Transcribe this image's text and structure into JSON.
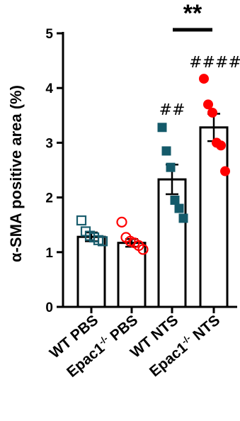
{
  "chart_data": {
    "type": "bar",
    "ylabel": "α-SMA positive area (%)",
    "ylim": [
      0,
      5
    ],
    "yticks": [
      0,
      1,
      2,
      3,
      4,
      5
    ],
    "categories": [
      {
        "name": "WT PBS",
        "base": "WT PBS",
        "sup": "",
        "tail": ""
      },
      {
        "name": "Epac1-/- PBS",
        "base": "Epac1",
        "sup": "-/-",
        "tail": " PBS"
      },
      {
        "name": "WT NTS",
        "base": "WT NTS",
        "sup": "",
        "tail": ""
      },
      {
        "name": "Epac1-/- NTS",
        "base": "Epac1",
        "sup": "-/-",
        "tail": " NTS"
      }
    ],
    "means": [
      1.28,
      1.17,
      2.33,
      3.28
    ],
    "sem": [
      0.08,
      0.07,
      0.27,
      0.25
    ],
    "points": [
      [
        1.58,
        1.38,
        1.3,
        1.27,
        1.22,
        1.2
      ],
      [
        1.55,
        1.27,
        1.2,
        1.17,
        1.12,
        1.05
      ],
      [
        3.28,
        2.85,
        2.55,
        1.95,
        1.8,
        1.62
      ],
      [
        4.17,
        3.7,
        3.55,
        3.0,
        2.95,
        2.48
      ]
    ],
    "markers": [
      {
        "shape": "open-square",
        "color": "#1b5e6e"
      },
      {
        "shape": "open-circle",
        "color": "#ff0000"
      },
      {
        "shape": "filled-square",
        "color": "#145a6a"
      },
      {
        "shape": "filled-circle",
        "color": "#ff0000"
      }
    ],
    "annotations": {
      "group3": "##",
      "group4": "####",
      "comparison": "**"
    }
  }
}
